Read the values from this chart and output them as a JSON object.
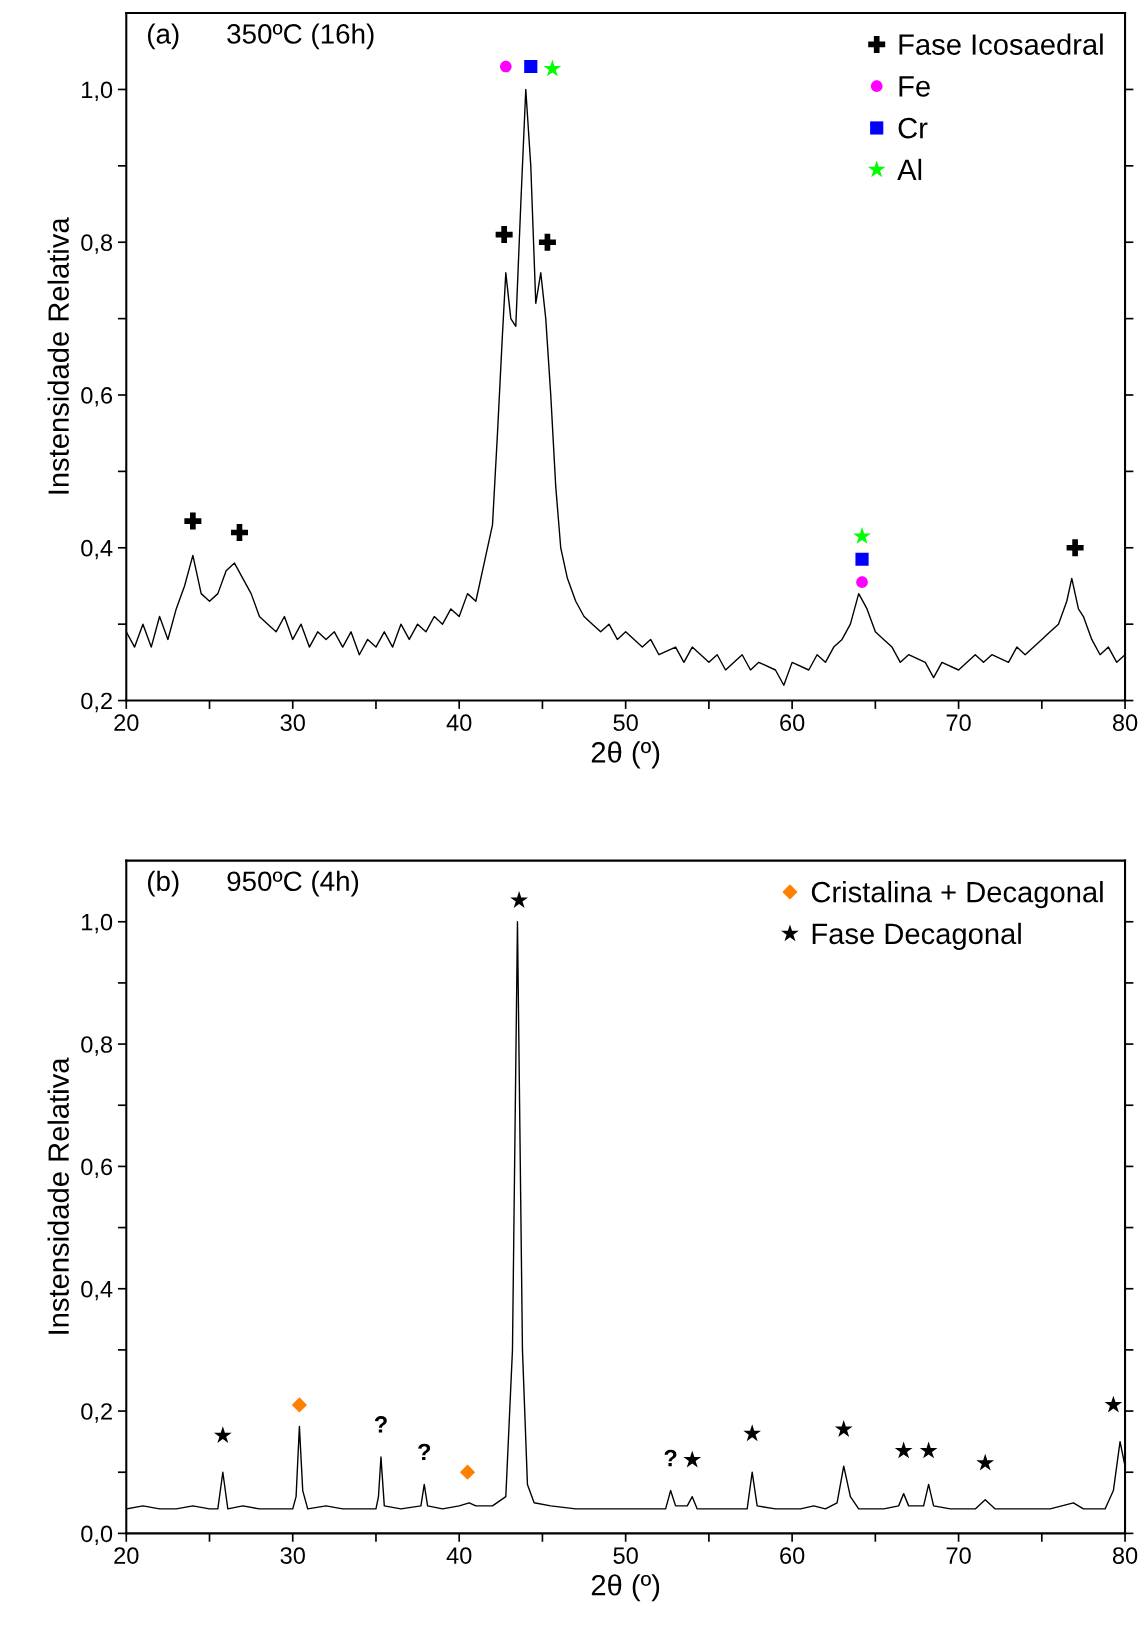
{
  "chart_data": [
    {
      "type": "line",
      "xlabel": "2θ (º)",
      "ylabel": "Instensidade Relativa",
      "annotations": [
        "(a)",
        "350ºC (16h)"
      ],
      "xlim": [
        20,
        80
      ],
      "ylim": [
        0.2,
        1.1
      ],
      "xticks": [
        20,
        {
          "value": 25,
          "label": null
        },
        30,
        {
          "value": 35,
          "label": null
        },
        40,
        {
          "value": 45,
          "label": null
        },
        50,
        {
          "value": 55,
          "label": null
        },
        60,
        {
          "value": 65,
          "label": null
        },
        70,
        {
          "value": 75,
          "label": null
        },
        80
      ],
      "yticks": [
        {
          "value": 0.2,
          "label": "0,2"
        },
        {
          "value": 0.3,
          "label": null
        },
        {
          "value": 0.4,
          "label": "0,4"
        },
        {
          "value": 0.5,
          "label": null
        },
        {
          "value": 0.6,
          "label": "0,6"
        },
        {
          "value": 0.7,
          "label": null
        },
        {
          "value": 0.8,
          "label": "0,8"
        },
        {
          "value": 0.9,
          "label": null
        },
        {
          "value": 1.0,
          "label": "1,0"
        }
      ],
      "legend": "top right",
      "grid": false,
      "series": [
        {
          "color": "#000000",
          "marker": "none",
          "line_style": "solid",
          "x": [
            20,
            20.5,
            21,
            21.5,
            22,
            22.5,
            23,
            23.5,
            24,
            24.5,
            25,
            25.5,
            26,
            26.5,
            27,
            27.5,
            28,
            28.5,
            29,
            29.5,
            30,
            30.5,
            31,
            31.5,
            32,
            32.5,
            33,
            33.5,
            34,
            34.5,
            35,
            35.5,
            36,
            36.5,
            37,
            37.5,
            38,
            38.5,
            39,
            39.5,
            40,
            40.5,
            41,
            41.5,
            42,
            42.3,
            42.6,
            42.8,
            43.1,
            43.4,
            43.7,
            44.0,
            44.3,
            44.6,
            44.9,
            45.2,
            45.5,
            45.8,
            46.1,
            46.5,
            47,
            47.5,
            48,
            48.5,
            49,
            49.5,
            50,
            51,
            51.5,
            52,
            53,
            53.5,
            54,
            55,
            55.5,
            56,
            57,
            57.5,
            58,
            59,
            59.5,
            60,
            61,
            61.5,
            62,
            62.5,
            63,
            63.5,
            64,
            64.5,
            65,
            65.5,
            66,
            66.5,
            67,
            68,
            68.5,
            69,
            70,
            71,
            71.5,
            72,
            73,
            73.5,
            74,
            75,
            75.5,
            76,
            76.5,
            76.8,
            77.2,
            77.5,
            78,
            78.5,
            79,
            79.5,
            80
          ],
          "values": [
            0.29,
            0.27,
            0.3,
            0.27,
            0.31,
            0.28,
            0.32,
            0.35,
            0.39,
            0.34,
            0.33,
            0.34,
            0.37,
            0.38,
            0.36,
            0.34,
            0.31,
            0.3,
            0.29,
            0.31,
            0.28,
            0.3,
            0.27,
            0.29,
            0.28,
            0.29,
            0.27,
            0.29,
            0.26,
            0.28,
            0.27,
            0.29,
            0.27,
            0.3,
            0.28,
            0.3,
            0.29,
            0.31,
            0.3,
            0.32,
            0.31,
            0.34,
            0.33,
            0.38,
            0.43,
            0.55,
            0.68,
            0.76,
            0.7,
            0.69,
            0.85,
            1.0,
            0.9,
            0.72,
            0.76,
            0.7,
            0.6,
            0.48,
            0.4,
            0.36,
            0.33,
            0.31,
            0.3,
            0.29,
            0.3,
            0.28,
            0.29,
            0.27,
            0.28,
            0.26,
            0.27,
            0.25,
            0.27,
            0.25,
            0.26,
            0.24,
            0.26,
            0.24,
            0.25,
            0.24,
            0.22,
            0.25,
            0.24,
            0.26,
            0.25,
            0.27,
            0.28,
            0.3,
            0.34,
            0.32,
            0.29,
            0.28,
            0.27,
            0.25,
            0.26,
            0.25,
            0.23,
            0.25,
            0.24,
            0.26,
            0.25,
            0.26,
            0.25,
            0.27,
            0.26,
            0.28,
            0.29,
            0.3,
            0.33,
            0.36,
            0.32,
            0.31,
            0.28,
            0.26,
            0.27,
            0.25,
            0.26
          ]
        },
        {
          "type": "scatter",
          "name": "Fase Icosaedral",
          "color": "#000000",
          "marker": "cross",
          "x": [
            24.0,
            26.8,
            42.7,
            45.3,
            77.0
          ],
          "values": [
            0.435,
            0.42,
            0.81,
            0.8,
            0.4
          ]
        },
        {
          "type": "scatter",
          "name": "Fe",
          "color": "#ff00ff",
          "marker": "circle",
          "x": [
            42.8,
            64.2
          ],
          "values": [
            1.03,
            0.355
          ]
        },
        {
          "type": "scatter",
          "name": "Cr",
          "color": "#0000ff",
          "marker": "square",
          "x": [
            44.3,
            64.2
          ],
          "values": [
            1.03,
            0.385
          ]
        },
        {
          "type": "scatter",
          "name": "Al",
          "color": "#00ff00",
          "marker": "star",
          "x": [
            45.6,
            64.2
          ],
          "values": [
            1.027,
            0.415
          ]
        }
      ]
    },
    {
      "type": "line",
      "xlabel": "2θ (º)",
      "ylabel": "Instensidade Relativa",
      "annotations": [
        "(b)",
        "950ºC (4h)",
        {
          "text": "?",
          "x": 35.3,
          "y": 0.125
        },
        {
          "text": "?",
          "x": 37.9,
          "y": 0.08
        },
        {
          "text": "?",
          "x": 52.7,
          "y": 0.07
        }
      ],
      "xlim": [
        20,
        80
      ],
      "ylim": [
        0.0,
        1.1
      ],
      "xticks": [
        20,
        {
          "value": 25,
          "label": null
        },
        30,
        {
          "value": 35,
          "label": null
        },
        40,
        {
          "value": 45,
          "label": null
        },
        50,
        {
          "value": 55,
          "label": null
        },
        60,
        {
          "value": 65,
          "label": null
        },
        70,
        {
          "value": 75,
          "label": null
        },
        80
      ],
      "yticks": [
        {
          "value": 0.0,
          "label": "0,0"
        },
        {
          "value": 0.1,
          "label": null
        },
        {
          "value": 0.2,
          "label": "0,2"
        },
        {
          "value": 0.3,
          "label": null
        },
        {
          "value": 0.4,
          "label": "0,4"
        },
        {
          "value": 0.5,
          "label": null
        },
        {
          "value": 0.6,
          "label": "0,6"
        },
        {
          "value": 0.7,
          "label": null
        },
        {
          "value": 0.8,
          "label": "0,8"
        },
        {
          "value": 0.9,
          "label": null
        },
        {
          "value": 1.0,
          "label": "1,0"
        }
      ],
      "legend": "top right",
      "grid": false,
      "series": [
        {
          "color": "#000000",
          "marker": "none",
          "line_style": "solid",
          "x": [
            20,
            21,
            22,
            23,
            24,
            25,
            25.5,
            25.8,
            26.1,
            27,
            28,
            29,
            30,
            30.2,
            30.4,
            30.6,
            30.9,
            32,
            33,
            34,
            35,
            35.15,
            35.3,
            35.5,
            36.5,
            37.7,
            37.9,
            38.1,
            39,
            40,
            40.6,
            41,
            42,
            42.8,
            43.2,
            43.5,
            43.8,
            44.1,
            44.5,
            45.5,
            47,
            48.5,
            50,
            51.5,
            52.4,
            52.7,
            53,
            53.7,
            54,
            54.3,
            55.5,
            57.3,
            57.6,
            57.9,
            59,
            60.5,
            61.3,
            62,
            62.7,
            63.1,
            63.5,
            64,
            65.5,
            66.4,
            66.7,
            67,
            67.9,
            68.2,
            68.5,
            69.5,
            71,
            71.6,
            72.2,
            74,
            75.5,
            76.9,
            77.5,
            78.8,
            79.3,
            79.7,
            80
          ],
          "values": [
            0.04,
            0.045,
            0.04,
            0.04,
            0.045,
            0.04,
            0.04,
            0.1,
            0.04,
            0.045,
            0.04,
            0.04,
            0.04,
            0.06,
            0.175,
            0.07,
            0.04,
            0.045,
            0.04,
            0.04,
            0.04,
            0.06,
            0.125,
            0.045,
            0.04,
            0.045,
            0.08,
            0.045,
            0.04,
            0.045,
            0.05,
            0.045,
            0.045,
            0.06,
            0.3,
            1.0,
            0.3,
            0.08,
            0.05,
            0.045,
            0.04,
            0.04,
            0.04,
            0.04,
            0.04,
            0.07,
            0.045,
            0.045,
            0.06,
            0.04,
            0.04,
            0.04,
            0.1,
            0.045,
            0.04,
            0.04,
            0.045,
            0.04,
            0.05,
            0.11,
            0.06,
            0.04,
            0.04,
            0.045,
            0.065,
            0.045,
            0.045,
            0.08,
            0.045,
            0.04,
            0.04,
            0.055,
            0.04,
            0.04,
            0.04,
            0.05,
            0.04,
            0.04,
            0.07,
            0.15,
            0.11
          ]
        },
        {
          "type": "scatter",
          "name": "Cristalina + Decagonal",
          "color": "#ff7f00",
          "marker": "diamond",
          "x": [
            30.4,
            40.5
          ],
          "values": [
            0.21,
            0.1
          ]
        },
        {
          "type": "scatter",
          "name": "Fase Decagonal",
          "color": "#000000",
          "marker": "star",
          "x": [
            25.8,
            43.6,
            54.0,
            57.6,
            63.1,
            66.7,
            68.2,
            71.6,
            79.3
          ],
          "values": [
            0.16,
            1.035,
            0.12,
            0.163,
            0.17,
            0.135,
            0.135,
            0.115,
            0.21
          ]
        }
      ]
    }
  ]
}
